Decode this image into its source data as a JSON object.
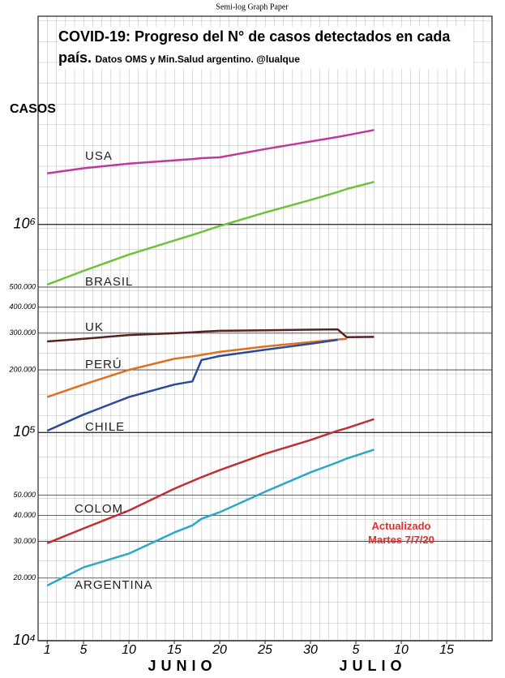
{
  "header": "Semi-log Graph Paper",
  "chart_data": {
    "type": "line",
    "title": "COVID-19: Progreso del N° de casos detectados en cada país.",
    "subtitle": "Datos OMS y Min.Salud argentino. @lualque",
    "y_label": "CASOS",
    "month_labels": [
      "JUNIO",
      "JULIO"
    ],
    "annotation": "Actualizado Martes 7/7/20",
    "log_y": true,
    "grid": true,
    "x": [
      1,
      5,
      10,
      15,
      17,
      18,
      20,
      25,
      30,
      33,
      34,
      37
    ],
    "xlim": [
      0,
      50
    ],
    "xticks": [
      1,
      5,
      10,
      15,
      20,
      25,
      30,
      {
        "value": 35,
        "label": "5"
      },
      {
        "value": 40,
        "label": "10"
      },
      {
        "value": 45,
        "label": "15"
      }
    ],
    "ylim": [
      10000,
      10000000
    ],
    "yticks": [
      {
        "value": 10000,
        "label": "10⁴"
      },
      {
        "value": 20000,
        "label": "20.000"
      },
      {
        "value": 30000,
        "label": "30.000"
      },
      {
        "value": 40000,
        "label": "40.000"
      },
      {
        "value": 50000,
        "label": "50.000"
      },
      {
        "value": 100000,
        "label": "10⁵"
      },
      {
        "value": 200000,
        "label": "200.000"
      },
      {
        "value": 300000,
        "label": "300.000"
      },
      {
        "value": 400000,
        "label": "400.000"
      },
      {
        "value": 500000,
        "label": "500.000"
      },
      {
        "value": 1000000,
        "label": "10⁶"
      }
    ],
    "series": [
      {
        "name": "USA",
        "color": "#c0399a",
        "values": [
          1760000,
          1860000,
          1960000,
          2030000,
          2060000,
          2080000,
          2100000,
          2300000,
          2500000,
          2630000,
          2680000,
          2840000
        ]
      },
      {
        "name": "BRASIL",
        "color": "#6ec23a",
        "values": [
          514000,
          598000,
          716000,
          836000,
          890000,
          920000,
          982000,
          1140000,
          1310000,
          1430000,
          1480000,
          1600000
        ]
      },
      {
        "name": "UK",
        "color": "#5a2020",
        "values": [
          274000,
          282000,
          294000,
          300000,
          303000,
          305000,
          308000,
          310000,
          312000,
          313000,
          287000,
          288000
        ]
      },
      {
        "name": "PERÚ",
        "color": "#e07020",
        "values": [
          148000,
          170000,
          200000,
          226000,
          232000,
          236000,
          244000,
          259000,
          272000,
          280000,
          282000,
          null
        ]
      },
      {
        "name": "CHILE",
        "color": "#2a4a9a",
        "values": [
          102000,
          122000,
          148000,
          170000,
          176000,
          223000,
          233000,
          250000,
          267000,
          279000,
          null,
          null
        ]
      },
      {
        "name": "COLOM.",
        "color": "#c03030",
        "values": [
          29400,
          34600,
          42200,
          53700,
          58500,
          61000,
          66000,
          79000,
          92000,
          102000,
          105000,
          116000
        ]
      },
      {
        "name": "ARGENTINA",
        "color": "#2aa8c8",
        "values": [
          18400,
          22500,
          26200,
          33100,
          35800,
          38500,
          41400,
          51900,
          64400,
          72000,
          75000,
          82800
        ]
      }
    ]
  }
}
